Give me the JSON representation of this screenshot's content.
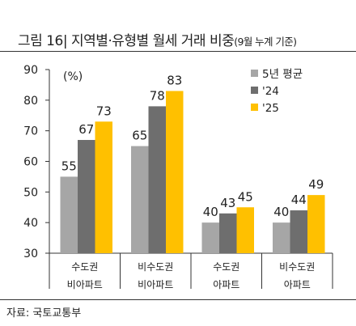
{
  "header": {
    "title": "그림 16| 지역별·유형별 월세 거래 비중",
    "title_note": "(9월 누계 기준)"
  },
  "footer": {
    "source": "자료: 국토교통부"
  },
  "chart_data": {
    "type": "bar",
    "title": "그림 16| 지역별·유형별 월세 거래 비중(9월 누계 기준)",
    "unit_label": "(%)",
    "categories": [
      {
        "line1": "수도권",
        "line2": "비아파트"
      },
      {
        "line1": "비수도권",
        "line2": "비아파트"
      },
      {
        "line1": "수도권",
        "line2": "아파트"
      },
      {
        "line1": "비수도권",
        "line2": "아파트"
      }
    ],
    "series": [
      {
        "name": "5년 평균",
        "color": "#a6a6a6",
        "values": [
          55,
          65,
          40,
          40
        ],
        "labels": [
          "55",
          "65",
          "40",
          "40"
        ]
      },
      {
        "name": "'24",
        "color": "#6e6e6e",
        "values": [
          67,
          78,
          43,
          44
        ],
        "labels": [
          "67",
          "78",
          "43",
          "44"
        ]
      },
      {
        "name": "'25",
        "color": "#ffc000",
        "values": [
          73,
          83,
          45,
          49
        ],
        "labels": [
          "73",
          "83",
          "45",
          "49"
        ]
      }
    ],
    "yticks": [
      "30",
      "40",
      "50",
      "60",
      "70",
      "80",
      "90"
    ],
    "ylim": [
      30,
      90
    ],
    "legend_position": "top-right",
    "grid": false
  }
}
